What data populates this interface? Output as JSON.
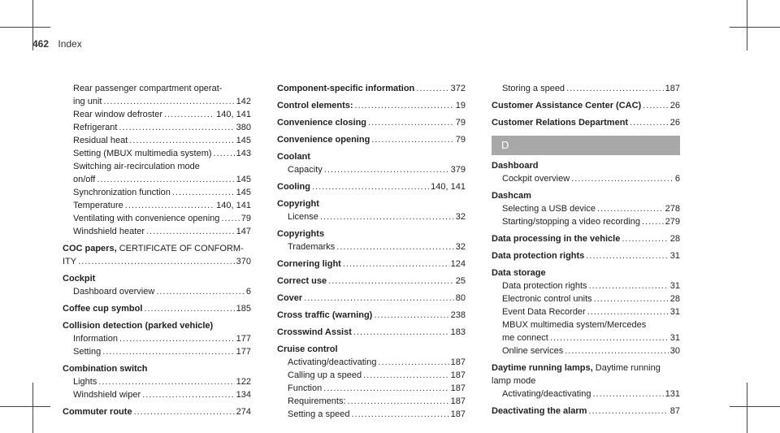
{
  "header": {
    "page_number": "462",
    "title": "Index"
  },
  "col1": {
    "r1": "Rear passenger compartment operat-",
    "r2": {
      "t": "ing unit",
      "p": "142"
    },
    "r3": {
      "t": "Rear window defroster",
      "p": "140, 141"
    },
    "r4": {
      "t": "Refrigerant",
      "p": "380"
    },
    "r5": {
      "t": "Residual heat",
      "p": "145"
    },
    "r6": {
      "t": "Setting (MBUX multimedia system)",
      "p": "143"
    },
    "r7": "Switching air-recirculation mode",
    "r8": {
      "t": "on/off",
      "p": "145"
    },
    "r9": {
      "t": "Synchronization function",
      "p": "145"
    },
    "r10": {
      "t": "Temperature",
      "p": "140, 141"
    },
    "r11": {
      "t": "Ventilating with convenience opening",
      "p": "79"
    },
    "r12": {
      "t": "Windshield heater",
      "p": "147"
    },
    "coc_bold": "COC papers,",
    "coc_rest": " CERTIFICATE OF CONFORM-",
    "coc2": {
      "t": "ITY",
      "p": "370"
    },
    "cockpit": "Cockpit",
    "cockpit1": {
      "t": "Dashboard overview",
      "p": "6"
    },
    "coffee": {
      "t": "Coffee cup symbol",
      "p": "185"
    },
    "collision": "Collision detection (parked vehicle)",
    "collision1": {
      "t": "Information",
      "p": "177"
    },
    "collision2": {
      "t": "Setting",
      "p": "177"
    },
    "combination": "Combination switch",
    "combination1": {
      "t": "Lights",
      "p": "122"
    },
    "combination2": {
      "t": "Windshield wiper",
      "p": "134"
    },
    "commuter": {
      "t": "Commuter route",
      "p": "274"
    }
  },
  "col2": {
    "component": {
      "t": "Component-specific information",
      "p": "372"
    },
    "control": {
      "t": "Control elements:",
      "p": "19"
    },
    "conv_closing": {
      "t": "Convenience closing",
      "p": "79"
    },
    "conv_opening": {
      "t": "Convenience opening",
      "p": "79"
    },
    "coolant": "Coolant",
    "coolant1": {
      "t": "Capacity",
      "p": "379"
    },
    "cooling": {
      "t": "Cooling",
      "p": "140, 141"
    },
    "copyright": "Copyright",
    "copyright1": {
      "t": "License",
      "p": "32"
    },
    "copyrights": "Copyrights",
    "copyrights1": {
      "t": "Trademarks",
      "p": "32"
    },
    "cornering": {
      "t": "Cornering light",
      "p": "124"
    },
    "correct": {
      "t": "Correct use",
      "p": "25"
    },
    "cover": {
      "t": "Cover",
      "p": "80"
    },
    "cross_traffic": {
      "t": "Cross traffic (warning)",
      "p": "238"
    },
    "crosswind": {
      "t": "Crosswind Assist",
      "p": "183"
    },
    "cruise": "Cruise control",
    "cruise1": {
      "t": "Activating/deactivating",
      "p": "187"
    },
    "cruise2": {
      "t": "Calling up a speed",
      "p": "187"
    },
    "cruise3": {
      "t": "Function",
      "p": "187"
    },
    "cruise4": {
      "t": "Requirements:",
      "p": "187"
    },
    "cruise5": {
      "t": "Setting a speed",
      "p": "187"
    }
  },
  "col3": {
    "storing": {
      "t": "Storing a speed",
      "p": "187"
    },
    "cac": {
      "t": "Customer Assistance Center (CAC)",
      "p": "26"
    },
    "crd": {
      "t": "Customer Relations Department",
      "p": "26"
    },
    "section_letter": "D",
    "dashboard": "Dashboard",
    "dashboard1": {
      "t": "Cockpit overview",
      "p": "6"
    },
    "dashcam": "Dashcam",
    "dashcam1": {
      "t": "Selecting a USB device",
      "p": "278"
    },
    "dashcam2": {
      "t": "Starting/stopping a video recording",
      "p": "279"
    },
    "data_processing": {
      "t": "Data processing in the vehicle",
      "p": "28"
    },
    "data_protection": {
      "t": "Data protection rights",
      "p": "31"
    },
    "data_storage": "Data storage",
    "ds1": {
      "t": "Data protection rights",
      "p": "31"
    },
    "ds2": {
      "t": "Electronic control units",
      "p": "28"
    },
    "ds3": {
      "t": "Event Data Recorder",
      "p": "31"
    },
    "ds4": "MBUX multimedia system/Mercedes",
    "ds5": {
      "t": "me connect",
      "p": "31"
    },
    "ds6": {
      "t": "Online services",
      "p": "30"
    },
    "drl_bold": "Daytime running lamps,",
    "drl_rest": " Daytime running",
    "drl2": "lamp mode",
    "drl3": {
      "t": "Activating/deactivating",
      "p": "131"
    },
    "deactivating_alarm": {
      "t": "Deactivating the alarm",
      "p": "87"
    }
  }
}
